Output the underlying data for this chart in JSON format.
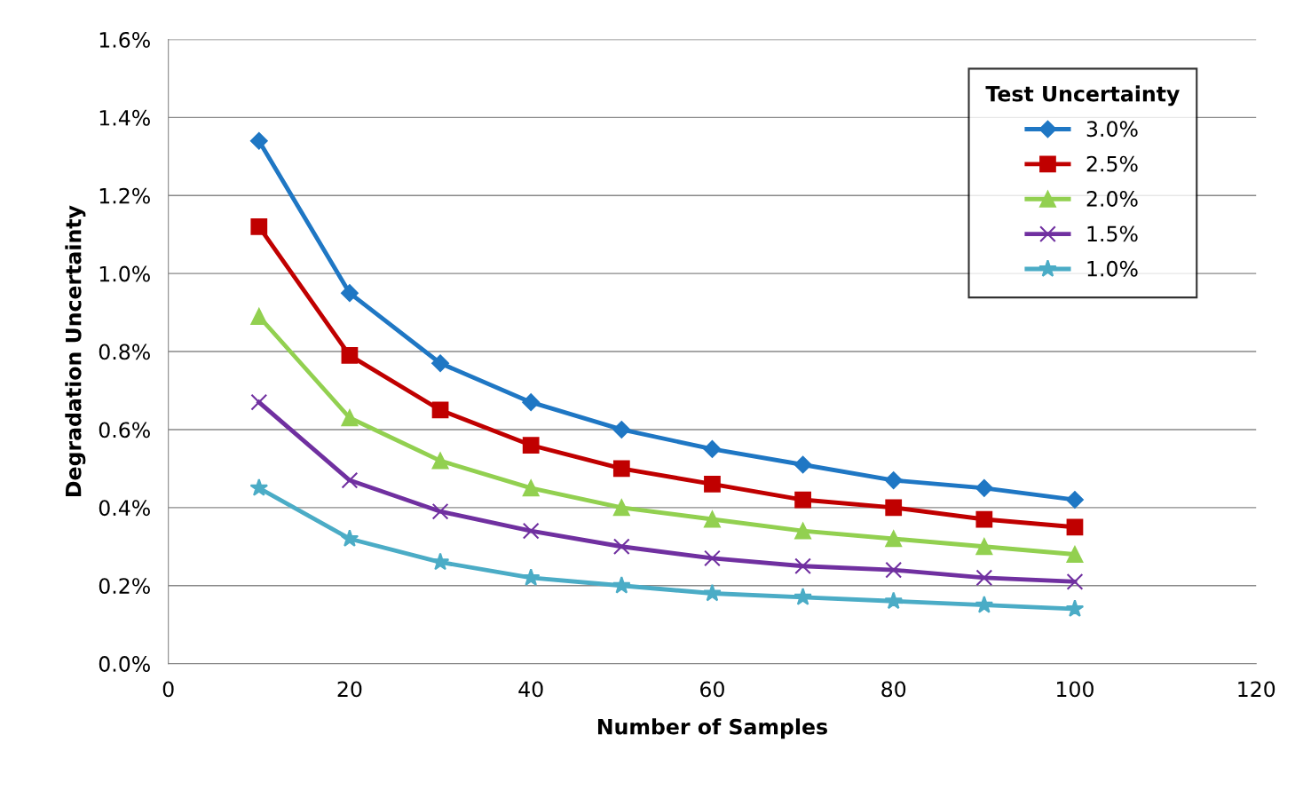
{
  "chart_data": {
    "type": "line",
    "xlabel": "Number of Samples",
    "ylabel": "Degradation Uncertainty",
    "legend_title": "Test Uncertainty",
    "x": [
      10,
      20,
      30,
      40,
      50,
      60,
      70,
      80,
      90,
      100
    ],
    "xlim": [
      0,
      120
    ],
    "xticks": [
      0,
      20,
      40,
      60,
      80,
      100,
      120
    ],
    "ylim": [
      0,
      1.6
    ],
    "yticks": [
      {
        "value": 0,
        "label": "0.0%"
      },
      {
        "value": 0.2,
        "label": "0.2%"
      },
      {
        "value": 0.4,
        "label": "0.4%"
      },
      {
        "value": 0.6,
        "label": "0.6%"
      },
      {
        "value": 0.8,
        "label": "0.8%"
      },
      {
        "value": 1.0,
        "label": "1.0%"
      },
      {
        "value": 1.2,
        "label": "1.2%"
      },
      {
        "value": 1.4,
        "label": "1.4%"
      },
      {
        "value": 1.6,
        "label": "1.6%"
      }
    ],
    "grid": "y",
    "legend": "top right",
    "line_style": "solid",
    "series": [
      {
        "name": "3.0%",
        "color": "#1f77c4",
        "marker": "diamond",
        "values": [
          1.34,
          0.95,
          0.77,
          0.67,
          0.6,
          0.55,
          0.51,
          0.47,
          0.45,
          0.42
        ]
      },
      {
        "name": "2.5%",
        "color": "#c00000",
        "marker": "square",
        "values": [
          1.12,
          0.79,
          0.65,
          0.56,
          0.5,
          0.46,
          0.42,
          0.4,
          0.37,
          0.35
        ]
      },
      {
        "name": "2.0%",
        "color": "#92d050",
        "marker": "triangle",
        "values": [
          0.89,
          0.63,
          0.52,
          0.45,
          0.4,
          0.37,
          0.34,
          0.32,
          0.3,
          0.28
        ]
      },
      {
        "name": "1.5%",
        "color": "#7030a0",
        "marker": "cross",
        "values": [
          0.67,
          0.47,
          0.39,
          0.34,
          0.3,
          0.27,
          0.25,
          0.24,
          0.22,
          0.21
        ]
      },
      {
        "name": "1.0%",
        "color": "#4bacc6",
        "marker": "star",
        "values": [
          0.45,
          0.32,
          0.26,
          0.22,
          0.2,
          0.18,
          0.17,
          0.16,
          0.15,
          0.14
        ]
      }
    ]
  }
}
